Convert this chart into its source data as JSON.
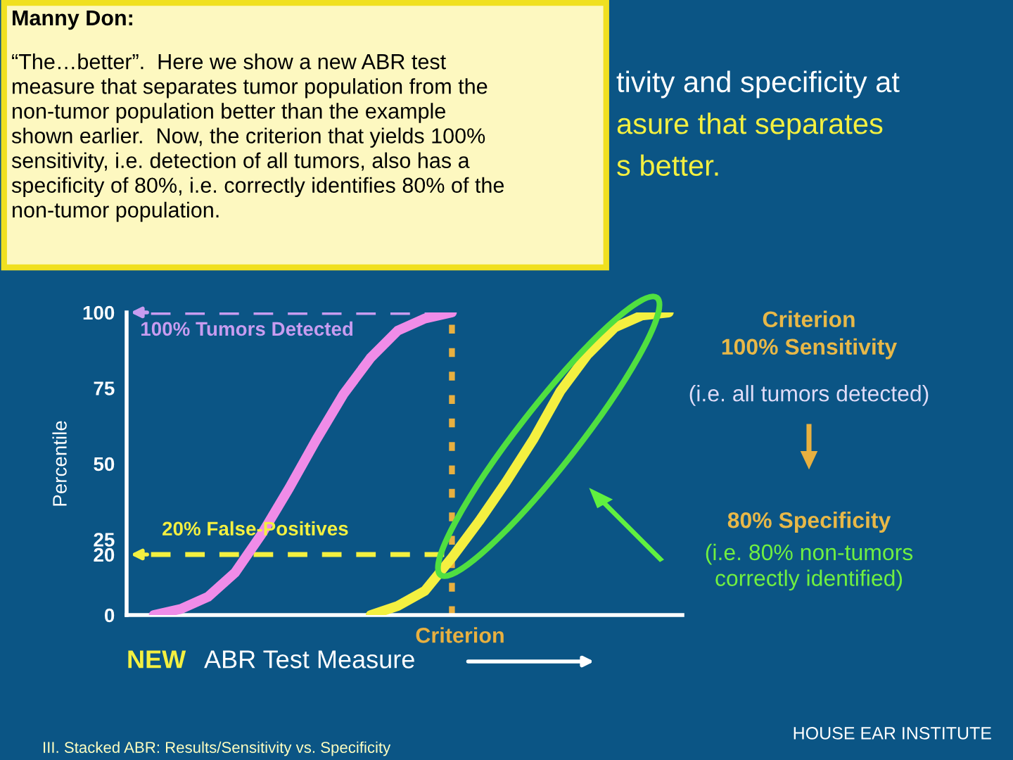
{
  "chart_data": {
    "type": "line",
    "categories": [
      null,
      null,
      null,
      null,
      null,
      null,
      null,
      null,
      null,
      null,
      null,
      null,
      null,
      null,
      null,
      null,
      null,
      null,
      null,
      null,
      null
    ],
    "series": [
      {
        "color": "#f08ce8",
        "values": [
          null,
          0,
          2,
          6,
          14,
          27,
          42,
          58,
          73,
          85,
          94,
          98,
          100,
          null,
          null,
          null,
          null,
          null,
          null,
          null,
          null
        ]
      },
      {
        "color": "#f4f040",
        "values": [
          null,
          null,
          null,
          null,
          null,
          null,
          null,
          null,
          null,
          0,
          3,
          8,
          19,
          31,
          44,
          58,
          74,
          86,
          95,
          99,
          100
        ]
      }
    ],
    "ylim": [
      0,
      100
    ],
    "yticks": [
      0,
      20,
      25,
      50,
      75,
      100
    ],
    "ylabel": "Percentile",
    "xlabel": "ABR Test Measure",
    "grid": false,
    "legend": false,
    "tick_labels": "y",
    "marker": "none",
    "line_style": "solid",
    "ref_lines": [
      {
        "axis": "y",
        "value": 100,
        "label": "100% Tumors Detected",
        "color": "#c89cf0",
        "line_style": "dashed"
      },
      {
        "axis": "y",
        "value": 20,
        "label": "20% False-Positives",
        "color": "#f4f040",
        "line_style": "dashed"
      }
    ],
    "annotations": [
      "Manny Don:",
      "“The…better”.  Here we show a new ABR test\nmeasure that separates tumor population from the\nnon-tumor population better than the example\nshown earlier.  Now, the criterion that yields 100%\nsensitivity, i.e. detection of all tumors, also has a\nspecificity of 80%, i.e. correctly identifies 80% of the\nnon-tumor population.",
      "tivity and specificity at",
      "asure that separates",
      "s better.",
      "Criterion\n100% Sensitivity",
      "(i.e. all tumors detected)",
      "80% Specificity",
      "(i.e. 80% non-tumors\ncorrectly identified)",
      "NEW",
      "III. Stacked ABR: Results/Sensitivity vs. Specificity",
      "HOUSE EAR INSTITUTE",
      "Criterion"
    ]
  }
}
